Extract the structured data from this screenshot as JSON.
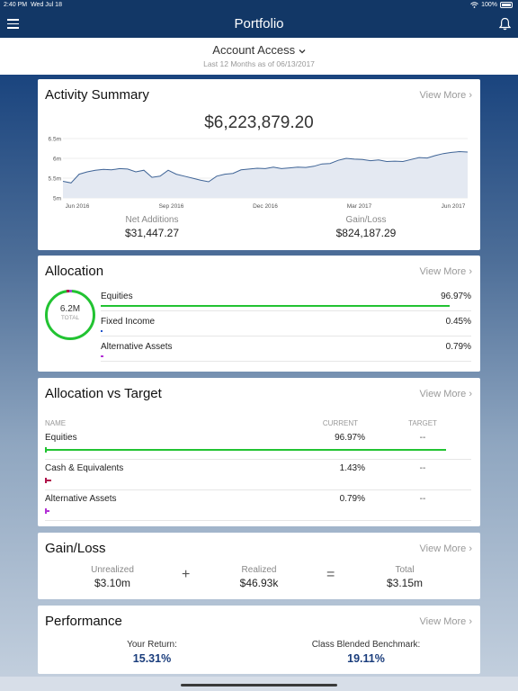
{
  "status_bar": {
    "time": "2:40 PM",
    "date": "Wed Jul 18",
    "battery": "100%"
  },
  "nav": {
    "title": "Portfolio"
  },
  "account": {
    "title": "Account Access",
    "subtitle": "Last 12 Months as of 06/13/2017"
  },
  "activity": {
    "title": "Activity Summary",
    "view_more": "View More",
    "total": "$6,223,879.20",
    "net_additions_label": "Net Additions",
    "net_additions_value": "$31,447.27",
    "gain_loss_label": "Gain/Loss",
    "gain_loss_value": "$824,187.29"
  },
  "chart_data": {
    "type": "area",
    "title": "",
    "ytick_labels": [
      "6.5m",
      "6m",
      "5.5m",
      "5m"
    ],
    "xtick_labels": [
      "Jun 2016",
      "Sep 2016",
      "Dec 2016",
      "Mar 2017",
      "Jun 2017"
    ],
    "ylim": [
      5.0,
      6.5
    ],
    "values": [
      5.42,
      5.38,
      5.6,
      5.66,
      5.7,
      5.72,
      5.71,
      5.74,
      5.73,
      5.66,
      5.7,
      5.52,
      5.55,
      5.7,
      5.6,
      5.55,
      5.5,
      5.45,
      5.41,
      5.55,
      5.6,
      5.62,
      5.71,
      5.73,
      5.75,
      5.74,
      5.78,
      5.74,
      5.76,
      5.78,
      5.77,
      5.8,
      5.86,
      5.87,
      5.95,
      6.0,
      5.98,
      5.97,
      5.94,
      5.96,
      5.92,
      5.93,
      5.92,
      5.97,
      6.02,
      6.01,
      6.07,
      6.12,
      6.15,
      6.17,
      6.16
    ]
  },
  "allocation": {
    "title": "Allocation",
    "view_more": "View More",
    "donut_value": "6.2M",
    "donut_label": "TOTAL",
    "items": [
      {
        "name": "Equities",
        "pct_label": "96.97%",
        "pct": 96.97,
        "color": "#22c332"
      },
      {
        "name": "Fixed Income",
        "pct_label": "0.45%",
        "pct": 0.45,
        "color": "#2255cc"
      },
      {
        "name": "Alternative Assets",
        "pct_label": "0.79%",
        "pct": 0.79,
        "color": "#b331d6"
      }
    ]
  },
  "allocation_target": {
    "title": "Allocation vs Target",
    "view_more": "View More",
    "headers": {
      "name": "NAME",
      "current": "CURRENT",
      "target": "TARGET"
    },
    "rows": [
      {
        "name": "Equities",
        "current": "96.97%",
        "pct": 96.97,
        "target": "--",
        "color": "#22c332"
      },
      {
        "name": "Cash & Equivalents",
        "current": "1.43%",
        "pct": 1.43,
        "target": "--",
        "color": "#b0134b"
      },
      {
        "name": "Alternative Assets",
        "current": "0.79%",
        "pct": 0.79,
        "target": "--",
        "color": "#b331d6"
      }
    ]
  },
  "gain_loss": {
    "title": "Gain/Loss",
    "view_more": "View More",
    "unrealized_label": "Unrealized",
    "unrealized_value": "$3.10m",
    "realized_label": "Realized",
    "realized_value": "$46.93k",
    "total_label": "Total",
    "total_value": "$3.15m",
    "plus": "+",
    "equals": "="
  },
  "performance": {
    "title": "Performance",
    "view_more": "View More",
    "your_return_label": "Your Return:",
    "your_return_value": "15.31%",
    "benchmark_label": "Class Blended Benchmark:",
    "benchmark_value": "19.11%"
  }
}
